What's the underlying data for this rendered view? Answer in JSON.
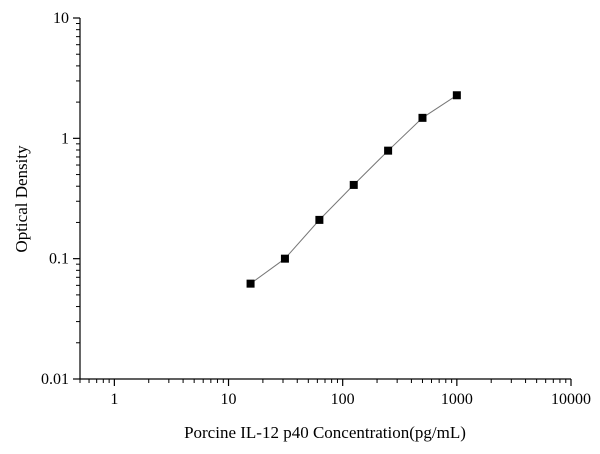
{
  "chart_data": {
    "type": "scatter",
    "title": "",
    "xlabel": "Porcine IL-12 p40 Concentration(pg/mL)",
    "ylabel": "Optical Density",
    "x_scale": "log",
    "y_scale": "log",
    "xlim": [
      0.5,
      10000
    ],
    "ylim": [
      0.01,
      10
    ],
    "x_ticks": [
      1,
      10,
      100,
      1000,
      10000
    ],
    "x_tick_labels": [
      "1",
      "10",
      "100",
      "1000",
      "10000"
    ],
    "y_ticks": [
      0.01,
      0.1,
      1,
      10
    ],
    "y_tick_labels": [
      "0.01",
      "0.1",
      "1",
      "10"
    ],
    "grid": false,
    "legend": "none",
    "series": [
      {
        "x": [
          15.6,
          31.2,
          62.5,
          125,
          250,
          500,
          1000
        ],
        "y": [
          0.062,
          0.1,
          0.21,
          0.41,
          0.79,
          1.48,
          2.28
        ],
        "marker": "square",
        "color": "#000000",
        "line_color": "#777777"
      }
    ]
  }
}
